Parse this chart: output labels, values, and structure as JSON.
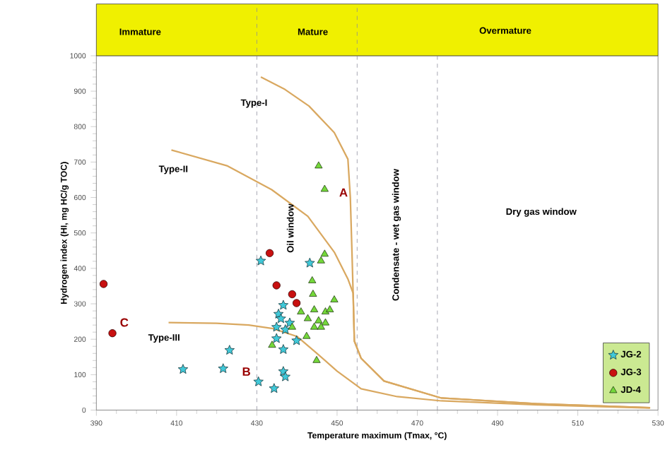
{
  "chart_data": {
    "type": "scatter",
    "xlabel": "Temperature maximum (Tmax, °C)",
    "ylabel": "Hydrogen index (HI, mg HC/g TOC)",
    "xlim": [
      390,
      530
    ],
    "xticks": [
      390,
      410,
      430,
      450,
      470,
      490,
      510,
      530
    ],
    "ylim": [
      0,
      1000
    ],
    "yticks": [
      0,
      100,
      200,
      300,
      400,
      500,
      600,
      700,
      800,
      900,
      1000
    ],
    "grid": false,
    "legend": "bottom right",
    "ref_lines": [
      {
        "axis": "x",
        "value": 430,
        "color": "#8a8a9a",
        "line_style": "dashed"
      },
      {
        "axis": "x",
        "value": 455,
        "color": "#8a8a9a",
        "line_style": "dashed"
      },
      {
        "axis": "x",
        "value": 475,
        "color": "#8a8a9a",
        "line_style": "dashed"
      }
    ],
    "series": [
      {
        "type": "line",
        "color": "#d9a860",
        "marker": "none",
        "x": [
          431,
          437,
          443,
          449.3,
          452.7,
          453.3,
          453.7,
          454,
          454.3,
          456,
          461.7,
          476,
          500,
          528
        ],
        "values": [
          940,
          905,
          858,
          783,
          708,
          600,
          450,
          330,
          195,
          146,
          82,
          34,
          18,
          7
        ]
      },
      {
        "type": "line",
        "color": "#d9a860",
        "marker": "none",
        "x": [
          408.7,
          422.7,
          433.7,
          442.7,
          449.3,
          452.7,
          454,
          454.3,
          456,
          461.7,
          476,
          500,
          528
        ],
        "values": [
          734,
          689,
          622,
          547,
          446,
          370,
          330,
          195,
          146,
          82,
          34,
          18,
          7
        ]
      },
      {
        "type": "line",
        "color": "#d9a860",
        "marker": "none",
        "x": [
          408,
          420,
          428,
          434,
          440,
          445,
          450,
          456,
          465,
          476,
          500,
          528
        ],
        "values": [
          247,
          245,
          240,
          230,
          208,
          160,
          110,
          60,
          38,
          26,
          15,
          6
        ]
      },
      {
        "name": "JG-2",
        "color": "#40c8d8",
        "marker": "star",
        "x": [
          431,
          443.2,
          436.6,
          435.4,
          436,
          438.2,
          434.9,
          437.1,
          434.9,
          439.9,
          436.6,
          423.2,
          411.6,
          421.6,
          436.6,
          430.4,
          437.1,
          434.3
        ],
        "values": [
          421,
          415,
          296,
          271,
          258,
          246,
          234,
          227,
          202,
          196,
          171,
          169,
          115,
          117,
          109,
          80,
          94,
          61
        ]
      },
      {
        "name": "JG-3",
        "color": "#c81010",
        "marker": "circle",
        "x": [
          433.2,
          434.9,
          438.8,
          439.9,
          391.8,
          394
        ],
        "values": [
          443,
          352,
          327,
          302,
          356,
          217
        ]
      },
      {
        "name": "JD-4",
        "color": "#74d83a",
        "marker": "triangle",
        "x": [
          445.4,
          446.9,
          446.9,
          446,
          443.8,
          444,
          449.3,
          441,
          444.3,
          447.1,
          448.2,
          442.7,
          445.4,
          447.1,
          438.8,
          444.3,
          446,
          442.4,
          433.8,
          444.9
        ],
        "values": [
          689,
          623,
          440,
          421,
          365,
          327,
          311,
          277,
          283,
          277,
          283,
          258,
          252,
          246,
          234,
          234,
          234,
          208,
          183,
          140
        ]
      }
    ],
    "annotations": [
      {
        "text": "Type-I",
        "x": 429.3,
        "y": 865
      },
      "Type-II",
      "Type-III",
      {
        "text": "A",
        "x": 451.6,
        "y": 614
      },
      "B",
      "C",
      "Oil window",
      "Condensate - wet gas window",
      "Dry gas window",
      "Immature",
      "Mature",
      "Overmature"
    ]
  }
}
